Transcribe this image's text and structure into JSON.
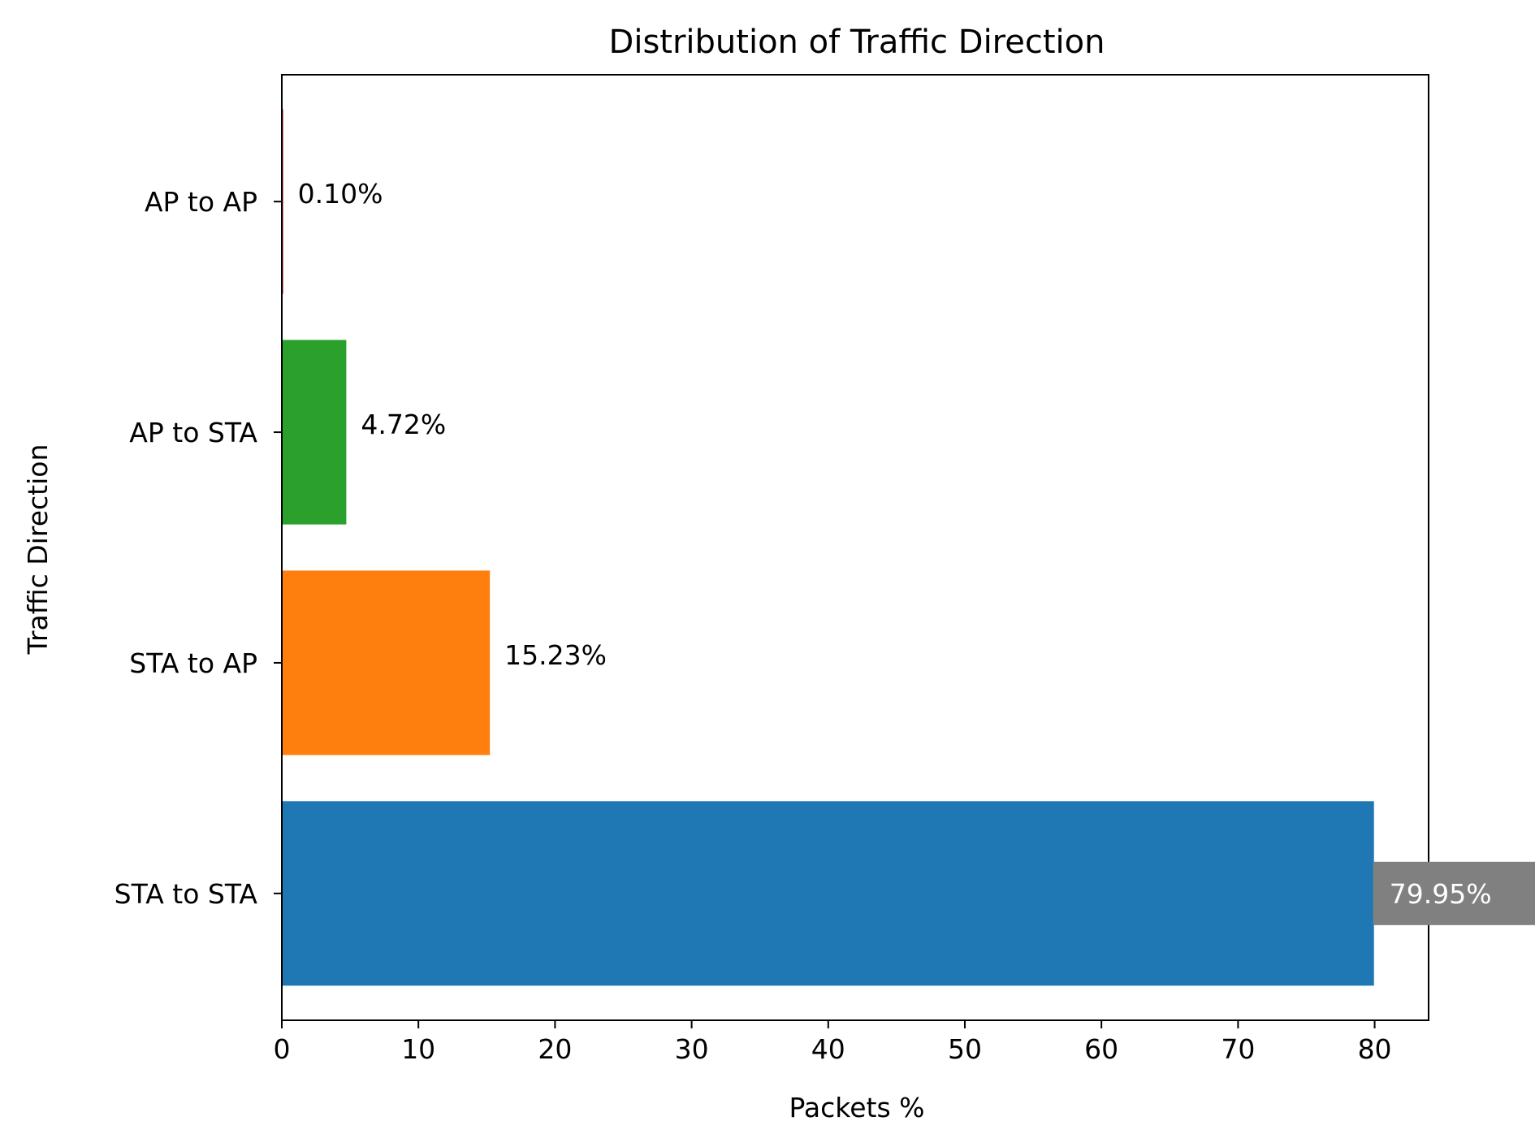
{
  "chart_data": {
    "type": "bar",
    "orientation": "horizontal",
    "title": "Distribution of Traffic Direction",
    "xlabel": "Packets %",
    "ylabel": "Traffic Direction",
    "categories": [
      "STA to STA",
      "STA to AP",
      "AP to STA",
      "AP to AP"
    ],
    "values": [
      79.95,
      15.23,
      4.72,
      0.1
    ],
    "value_labels": [
      "79.95%",
      "15.23%",
      "4.72%",
      "0.10%"
    ],
    "bar_colors": [
      "#1f77b4",
      "#ff7f0e",
      "#2ca02c",
      "#d62728"
    ],
    "highlight_label_background": "#808080",
    "xlim": [
      0,
      83.95
    ],
    "xticks": [
      0,
      10,
      20,
      30,
      40,
      50,
      60,
      70,
      80
    ],
    "xtick_labels": [
      "0",
      "10",
      "20",
      "30",
      "40",
      "50",
      "60",
      "70",
      "80"
    ],
    "grid": false,
    "legend": "none"
  }
}
